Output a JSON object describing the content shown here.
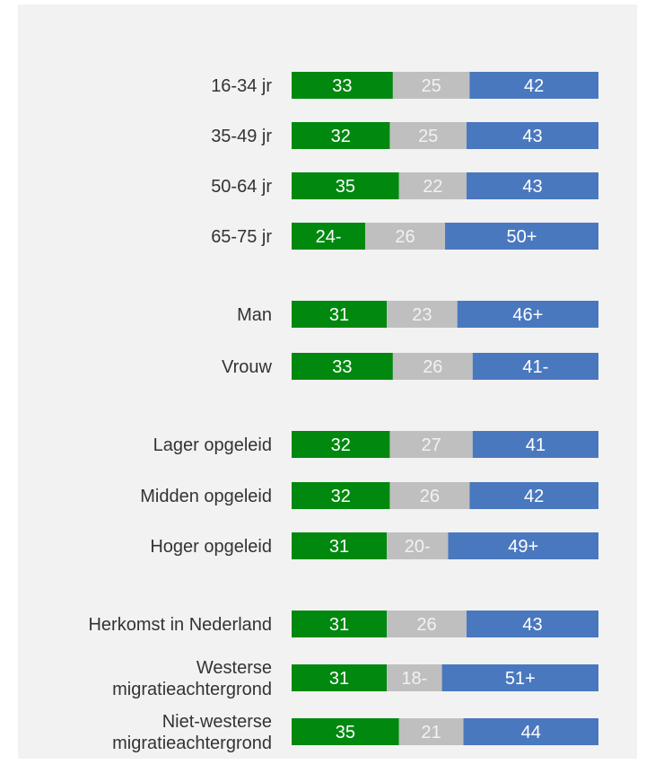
{
  "chart_data": {
    "type": "bar",
    "orientation": "horizontal",
    "stacked": "100%",
    "title": "",
    "xlabel": "",
    "ylabel": "",
    "xlim": [
      0,
      100
    ],
    "grid": false,
    "legend": "none",
    "colors": [
      "#00880f",
      "#bfbfbf",
      "#4a78bf"
    ],
    "label_colors": [
      "#ffffff",
      "#f2f2f2",
      "#ffffff"
    ],
    "rows": [
      {
        "label": [
          "16-34 jr"
        ],
        "values": [
          33,
          25,
          42
        ],
        "labels": [
          "33",
          "25",
          "42"
        ]
      },
      {
        "label": [
          "35-49 jr"
        ],
        "values": [
          32,
          25,
          43
        ],
        "labels": [
          "32",
          "25",
          "43"
        ]
      },
      {
        "label": [
          "50-64 jr"
        ],
        "values": [
          35,
          22,
          43
        ],
        "labels": [
          "35",
          "22",
          "43"
        ]
      },
      {
        "label": [
          "65-75 jr"
        ],
        "values": [
          24,
          26,
          50
        ],
        "labels": [
          "24-",
          "26",
          "50+"
        ]
      },
      {
        "label": [
          "Man"
        ],
        "values": [
          31,
          23,
          46
        ],
        "labels": [
          "31",
          "23",
          "46+"
        ]
      },
      {
        "label": [
          "Vrouw"
        ],
        "values": [
          33,
          26,
          41
        ],
        "labels": [
          "33",
          "26",
          "41-"
        ]
      },
      {
        "label": [
          "Lager opgeleid"
        ],
        "values": [
          32,
          27,
          41
        ],
        "labels": [
          "32",
          "27",
          "41"
        ]
      },
      {
        "label": [
          "Midden opgeleid"
        ],
        "values": [
          32,
          26,
          42
        ],
        "labels": [
          "32",
          "26",
          "42"
        ]
      },
      {
        "label": [
          "Hoger opgeleid"
        ],
        "values": [
          31,
          20,
          49
        ],
        "labels": [
          "31",
          "20-",
          "49+"
        ]
      },
      {
        "label": [
          "Herkomst in Nederland"
        ],
        "values": [
          31,
          26,
          43
        ],
        "labels": [
          "31",
          "26",
          "43"
        ]
      },
      {
        "label": [
          "Westerse",
          "migratieachtergrond"
        ],
        "values": [
          31,
          18,
          51
        ],
        "labels": [
          "31",
          "18-",
          "51+"
        ]
      },
      {
        "label": [
          "Niet-westerse",
          "migratieachtergrond"
        ],
        "values": [
          35,
          21,
          44
        ],
        "labels": [
          "35",
          "21",
          "44"
        ]
      }
    ]
  }
}
